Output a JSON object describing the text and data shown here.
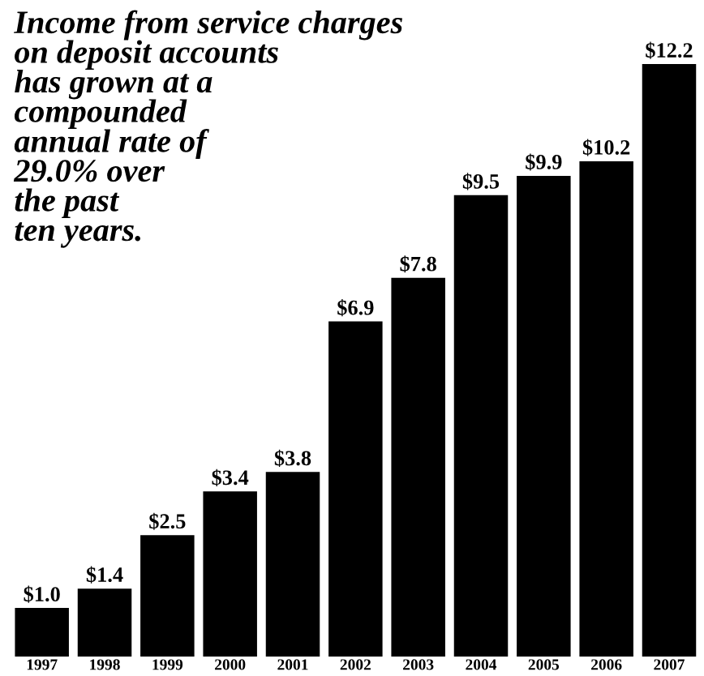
{
  "chart_data": {
    "type": "bar",
    "title": "Income from service charges\non deposit accounts\nhas grown at a\ncompounded\nannual rate of\n29.0% over\nthe past\nten years.",
    "categories": [
      "1997",
      "1998",
      "1999",
      "2000",
      "2001",
      "2002",
      "2003",
      "2004",
      "2005",
      "2006",
      "2007"
    ],
    "values": [
      1.0,
      1.4,
      2.5,
      3.4,
      3.8,
      6.9,
      7.8,
      9.5,
      9.9,
      10.2,
      12.2
    ],
    "value_labels": [
      "$1.0",
      "$1.4",
      "$2.5",
      "$3.4",
      "$3.8",
      "$6.9",
      "$7.8",
      "$9.5",
      "$9.9",
      "$10.2",
      "$12.2"
    ],
    "color": "#000000",
    "tick_labels": "x",
    "grid": false
  }
}
